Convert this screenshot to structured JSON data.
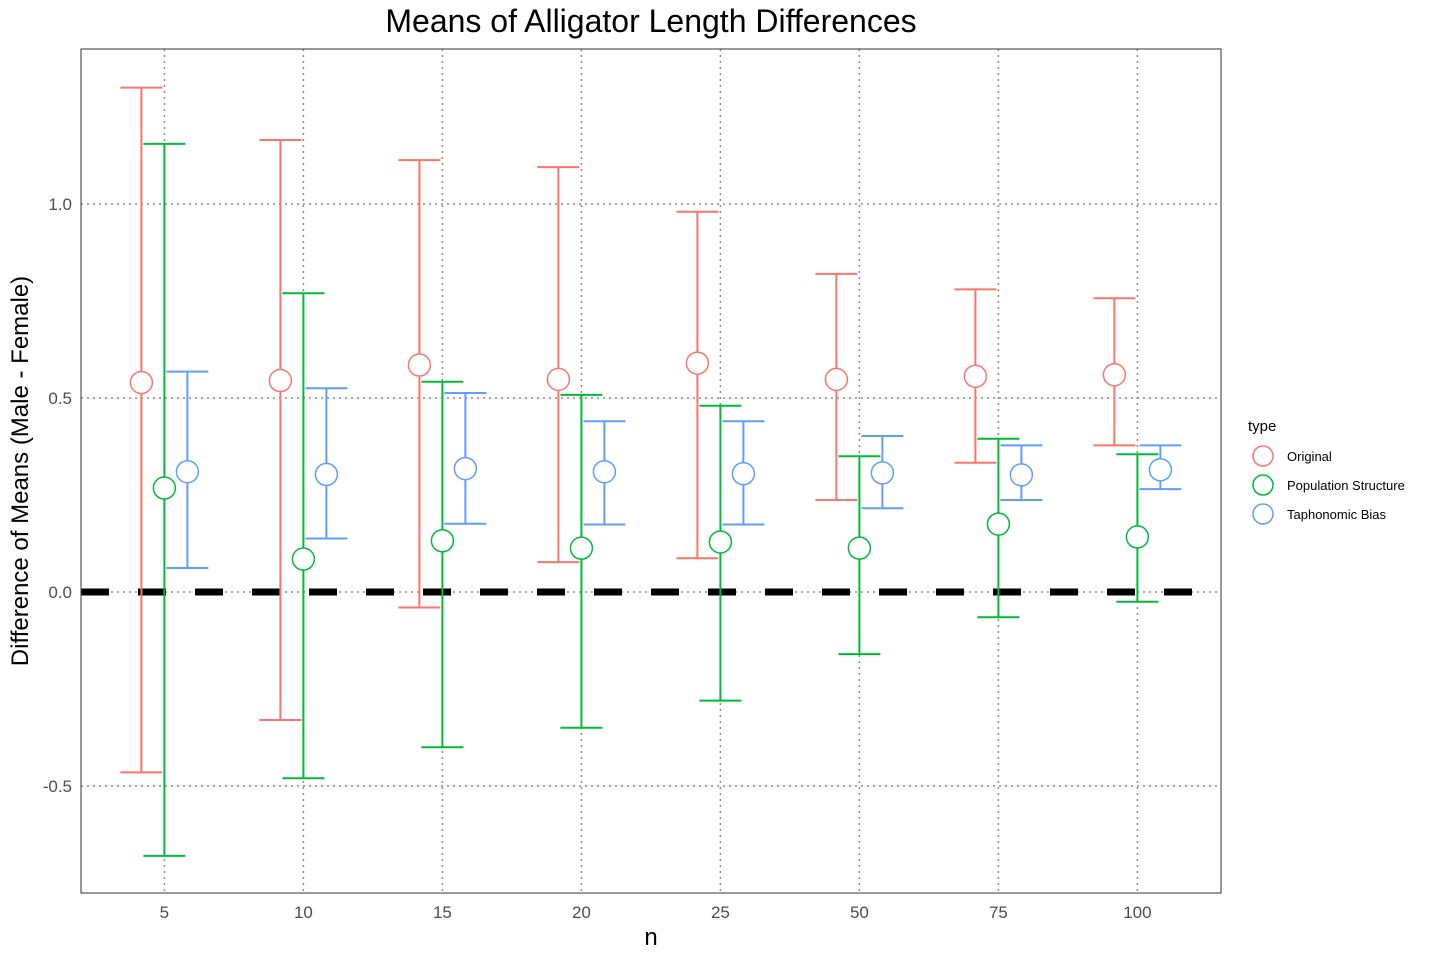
{
  "chart_data": {
    "type": "scatter",
    "subtype": "point-with-errorbars",
    "title": "Means of Alligator Length Differences",
    "xlabel": "n",
    "ylabel": "Difference of Means (Male - Female)",
    "categories": [
      "5",
      "10",
      "15",
      "20",
      "25",
      "50",
      "75",
      "100"
    ],
    "ylim": [
      -0.77,
      1.4
    ],
    "yticks": [
      -0.5,
      0.0,
      0.5,
      1.0
    ],
    "ytick_labels": [
      "-0.5",
      "0.0",
      "0.5",
      "1.0"
    ],
    "grid": "dotted, major only",
    "legend": {
      "title": "type",
      "position": "right"
    },
    "reference_line": {
      "y": 0.0,
      "style": "dashed",
      "color": "#000000"
    },
    "series": [
      {
        "name": "Original",
        "color": "#F8766D",
        "mean": [
          0.54,
          0.545,
          0.585,
          0.548,
          0.59,
          0.548,
          0.556,
          0.56
        ],
        "lower": [
          -0.465,
          -0.33,
          -0.04,
          0.077,
          0.087,
          0.237,
          0.333,
          0.378
        ],
        "upper": [
          1.3,
          1.165,
          1.113,
          1.095,
          0.98,
          0.82,
          0.78,
          0.757
        ]
      },
      {
        "name": "Population Structure",
        "color": "#00BA38",
        "mean": [
          0.268,
          0.085,
          0.132,
          0.113,
          0.129,
          0.113,
          0.175,
          0.142
        ],
        "lower": [
          -0.68,
          -0.48,
          -0.4,
          -0.35,
          -0.28,
          -0.16,
          -0.065,
          -0.025
        ],
        "upper": [
          1.155,
          0.77,
          0.542,
          0.508,
          0.48,
          0.35,
          0.395,
          0.355
        ]
      },
      {
        "name": "Taphonomic Bias",
        "color": "#619CFF",
        "mean": [
          0.31,
          0.303,
          0.318,
          0.31,
          0.305,
          0.307,
          0.302,
          0.315
        ],
        "lower": [
          0.062,
          0.138,
          0.176,
          0.174,
          0.174,
          0.216,
          0.237,
          0.265
        ],
        "upper": [
          0.568,
          0.525,
          0.513,
          0.44,
          0.44,
          0.402,
          0.378,
          0.378
        ]
      }
    ]
  }
}
